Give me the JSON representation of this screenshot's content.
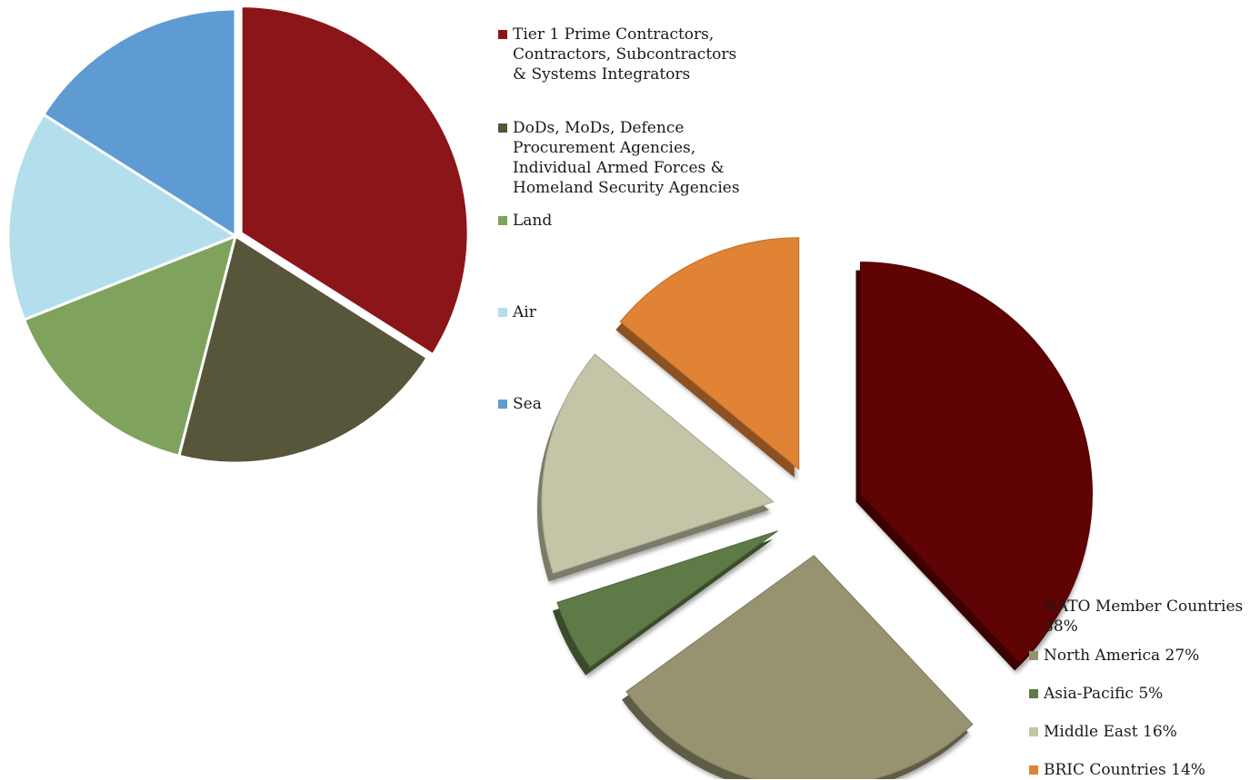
{
  "chart_data": [
    {
      "type": "pie",
      "title": "",
      "legend_position": "right",
      "slices": [
        {
          "label": "Tier 1 Prime Contractors,\nContractors, Subcontractors\n& Systems Integrators",
          "value": 34,
          "color": "#8b1518"
        },
        {
          "label": "DoDs, MoDs, Defence\nProcurement Agencies,\nIndividual Armed Forces &\nHomeland Security Agencies",
          "value": 20,
          "color": "#57553a"
        },
        {
          "label": "Land",
          "value": 15,
          "color": "#7fa35c"
        },
        {
          "label": "Air",
          "value": 15,
          "color": "#b3dfec"
        },
        {
          "label": "Sea",
          "value": 16,
          "color": "#5f9bd3"
        }
      ]
    },
    {
      "type": "pie",
      "title": "",
      "style": "exploded-3d",
      "legend_position": "bottom-right",
      "slices": [
        {
          "label": "NATO Member Countries\n38%",
          "value": 38,
          "color": "#5f0304"
        },
        {
          "label": "North America 27%",
          "value": 27,
          "color": "#979270"
        },
        {
          "label": "Asia-Pacific 5%",
          "value": 5,
          "color": "#5d7a47"
        },
        {
          "label": "Middle East 16%",
          "value": 16,
          "color": "#c6c4a6"
        },
        {
          "label": "BRIC Countries 14%",
          "value": 14,
          "color": "#e08334"
        }
      ]
    }
  ]
}
